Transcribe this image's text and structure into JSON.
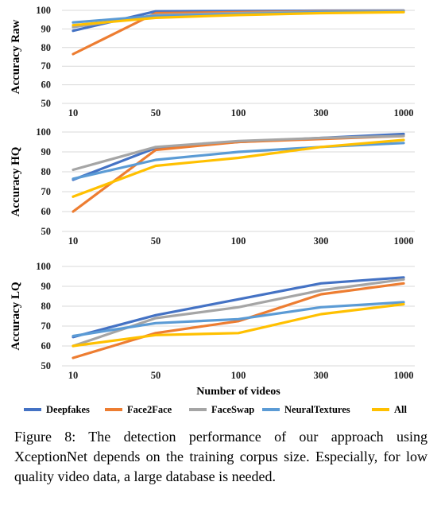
{
  "chart_data": [
    {
      "type": "line",
      "ylabel": "Accuracy Raw",
      "ylim": [
        50,
        100
      ],
      "yticks": [
        "50",
        "60",
        "70",
        "80",
        "90",
        "100"
      ],
      "categories": [
        "10",
        "50",
        "100",
        "300",
        "1000"
      ],
      "series": [
        {
          "name": "Deepfakes",
          "values": [
            89,
            99.5,
            99.6,
            99.8,
            99.9
          ]
        },
        {
          "name": "Face2Face",
          "values": [
            76.5,
            98.5,
            99.0,
            99.5,
            99.7
          ]
        },
        {
          "name": "FaceSwap",
          "values": [
            91,
            97.5,
            98.5,
            99.3,
            99.6
          ]
        },
        {
          "name": "NeuralTextures",
          "values": [
            93.5,
            97.0,
            98.0,
            99.0,
            99.3
          ]
        },
        {
          "name": "All",
          "values": [
            92,
            96.0,
            97.5,
            98.5,
            99.0
          ]
        }
      ],
      "grid": true
    },
    {
      "type": "line",
      "ylabel": "Accuracy HQ",
      "ylim": [
        50,
        100
      ],
      "yticks": [
        "50",
        "60",
        "70",
        "80",
        "90",
        "100"
      ],
      "categories": [
        "10",
        "50",
        "100",
        "300",
        "1000"
      ],
      "series": [
        {
          "name": "Deepfakes",
          "values": [
            76,
            92,
            95,
            97,
            99
          ]
        },
        {
          "name": "Face2Face",
          "values": [
            60,
            91,
            95,
            96.5,
            98
          ]
        },
        {
          "name": "FaceSwap",
          "values": [
            81,
            92.5,
            95.5,
            97,
            98
          ]
        },
        {
          "name": "NeuralTextures",
          "values": [
            76.5,
            86,
            90,
            92.5,
            94.5
          ]
        },
        {
          "name": "All",
          "values": [
            67.5,
            83,
            87,
            92.5,
            96
          ]
        }
      ],
      "grid": true
    },
    {
      "type": "line",
      "ylabel": "Accuracy LQ",
      "ylim": [
        50,
        100
      ],
      "yticks": [
        "50",
        "60",
        "70",
        "80",
        "90",
        "100"
      ],
      "categories": [
        "10",
        "50",
        "100",
        "300",
        "1000"
      ],
      "xlabel": "Number of videos",
      "series": [
        {
          "name": "Deepfakes",
          "values": [
            64.5,
            75.5,
            83.5,
            91.5,
            94.5
          ]
        },
        {
          "name": "Face2Face",
          "values": [
            54,
            66.5,
            72.5,
            86,
            91.5
          ]
        },
        {
          "name": "FaceSwap",
          "values": [
            60,
            74,
            79.5,
            88,
            93.5
          ]
        },
        {
          "name": "NeuralTextures",
          "values": [
            65,
            71.5,
            73.5,
            79.5,
            82
          ]
        },
        {
          "name": "All",
          "values": [
            60,
            65.5,
            66.5,
            76,
            81
          ]
        }
      ],
      "grid": true
    }
  ],
  "legend": {
    "placement": "bottom",
    "entries": [
      "Deepfakes",
      "Face2Face",
      "FaceSwap",
      "NeuralTextures",
      "All"
    ]
  },
  "colors": {
    "Deepfakes": "#4472c4",
    "Face2Face": "#ed7d31",
    "FaceSwap": "#a5a5a5",
    "NeuralTextures": "#5b9bd5",
    "All": "#ffc000",
    "grid": "#d9d9d9"
  },
  "caption": "Figure 8: The detection performance of our approach using XceptionNet depends on the training corpus size. Especially, for low quality video data, a large database is needed."
}
